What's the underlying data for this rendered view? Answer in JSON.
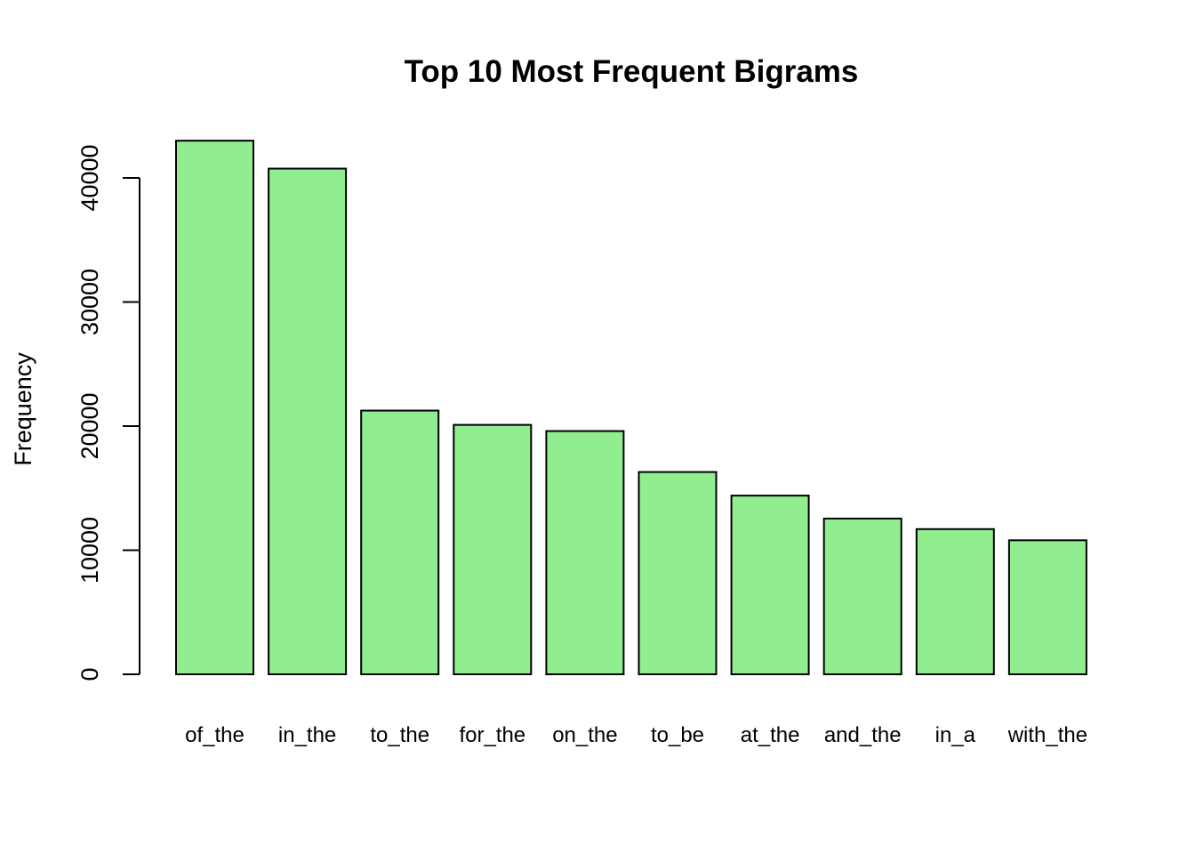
{
  "chart_data": {
    "type": "bar",
    "title": "Top 10 Most Frequent Bigrams",
    "xlabel": "",
    "ylabel": "Frequency",
    "categories": [
      "of_the",
      "in_the",
      "to_the",
      "for_the",
      "on_the",
      "to_be",
      "at_the",
      "and_the",
      "in_a",
      "with_the"
    ],
    "values": [
      43000,
      40750,
      21250,
      20100,
      19600,
      16300,
      14400,
      12550,
      11700,
      10800
    ],
    "ylim": [
      0,
      43000
    ],
    "yticks": [
      0,
      10000,
      20000,
      30000,
      40000
    ],
    "ytick_labels": [
      "0",
      "10000",
      "20000",
      "30000",
      "40000"
    ],
    "grid": false,
    "legend": "none",
    "colors": {
      "bar_fill": "#90EE90",
      "bar_stroke": "#000000",
      "text": "#000000",
      "background": "#FFFFFF"
    }
  }
}
